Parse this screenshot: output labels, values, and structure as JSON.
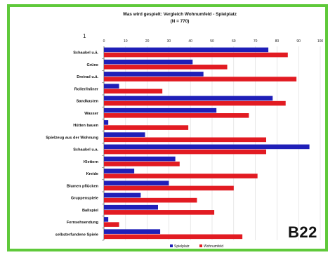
{
  "badge": "B22",
  "stray_mark": "1",
  "colors": {
    "spielplatz": "#1f1fb8",
    "wohnumfeld": "#e21b22",
    "border": "#5fc93a"
  },
  "chart_data": {
    "type": "bar",
    "orientation": "horizontal",
    "title": "Was wird gespielt: Vergleich Wohnumfeld - Spielplatz",
    "subtitle": "(N = 770)",
    "xlim": [
      0,
      100
    ],
    "xticks": [
      0,
      10,
      20,
      30,
      40,
      50,
      60,
      70,
      80,
      90,
      100
    ],
    "categories": [
      "Schaukel u.ä.",
      "Grüne",
      "Dreirad u.ä.",
      "Roller/Inliner",
      "Sandkasten",
      "Wasser",
      "Hütten bauen",
      "Spielzeug aus der Wohnung",
      "Schaukel u.a.",
      "Klettern",
      "Kreide",
      "Blumen pflücken",
      "Gruppenspiele",
      "Ballspiel",
      "Fernsehsendung",
      "selbsterfundene Spiele"
    ],
    "series": [
      {
        "name": "Spielplatz",
        "values": [
          76,
          41,
          46,
          7,
          78,
          52,
          2,
          19,
          95,
          33,
          14,
          30,
          17,
          25,
          2,
          26
        ]
      },
      {
        "name": "Wohnumfeld",
        "values": [
          85,
          57,
          89,
          27,
          84,
          67,
          39,
          75,
          75,
          35,
          71,
          60,
          43,
          51,
          7,
          64
        ]
      }
    ],
    "legend_position": "bottom-center"
  }
}
